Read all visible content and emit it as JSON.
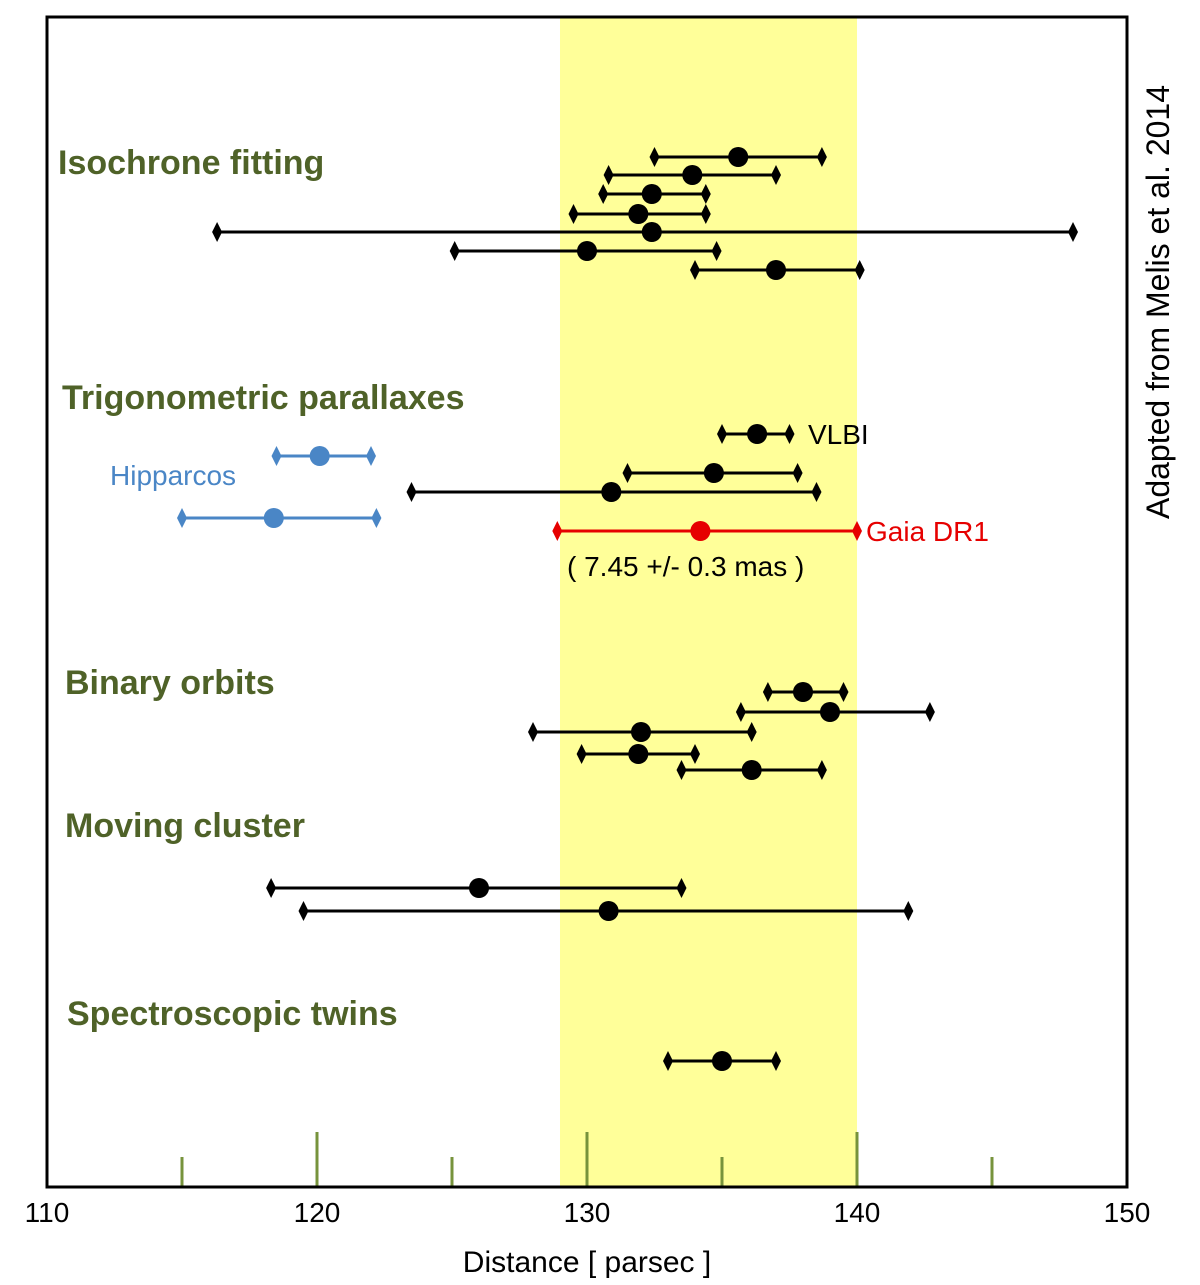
{
  "chart_data": {
    "type": "scatter",
    "subtype": "error-bar",
    "title": "",
    "xlabel": "Distance [ parsec ]",
    "ylabel": "",
    "xlim": [
      110,
      150
    ],
    "xticks": [
      110,
      120,
      130,
      140,
      150
    ],
    "minor_xticks": [
      115,
      120,
      125,
      130,
      135,
      140,
      145
    ],
    "side_note": "Adapted from Melis et al. 2014",
    "highlight_band": {
      "from": 129,
      "to": 140,
      "color": "#ffff99"
    },
    "colors": {
      "default": "#000000",
      "hipparcos": "#4a86c6",
      "gaia": "#e60000",
      "group_label": "#4f6228",
      "tick": "#77933c"
    },
    "groups": [
      {
        "label": "Isochrone fitting",
        "measurements": [
          {
            "value": 135.6,
            "low": 132.5,
            "high": 138.7
          },
          {
            "value": 133.9,
            "low": 130.8,
            "high": 137.0
          },
          {
            "value": 132.4,
            "low": 130.6,
            "high": 134.4
          },
          {
            "value": 131.9,
            "low": 129.5,
            "high": 134.4
          },
          {
            "value": 132.4,
            "low": 116.3,
            "high": 148.0
          },
          {
            "value": 130.0,
            "low": 125.1,
            "high": 134.8
          },
          {
            "value": 137.0,
            "low": 134.0,
            "high": 140.1
          }
        ]
      },
      {
        "label": "Trigonometric parallaxes",
        "measurements": [
          {
            "value": 136.3,
            "low": 135.0,
            "high": 137.5,
            "annotation": "VLBI"
          },
          {
            "value": 120.1,
            "low": 118.5,
            "high": 122.0,
            "source": "hipparcos",
            "annotation": "Hipparcos"
          },
          {
            "value": 134.7,
            "low": 131.5,
            "high": 137.8
          },
          {
            "value": 130.9,
            "low": 123.5,
            "high": 138.5
          },
          {
            "value": 118.4,
            "low": 115.0,
            "high": 122.2,
            "source": "hipparcos"
          },
          {
            "value": 134.2,
            "low": 128.9,
            "high": 140.0,
            "source": "gaia",
            "annotation": "Gaia DR1",
            "note": "( 7.45 +/- 0.3 mas )"
          }
        ]
      },
      {
        "label": "Binary orbits",
        "measurements": [
          {
            "value": 138.0,
            "low": 136.7,
            "high": 139.5
          },
          {
            "value": 139.0,
            "low": 135.7,
            "high": 142.7
          },
          {
            "value": 132.0,
            "low": 128.0,
            "high": 136.1
          },
          {
            "value": 131.9,
            "low": 129.8,
            "high": 134.0
          },
          {
            "value": 136.1,
            "low": 133.5,
            "high": 138.7
          }
        ]
      },
      {
        "label": "Moving cluster",
        "measurements": [
          {
            "value": 126.0,
            "low": 118.3,
            "high": 133.5
          },
          {
            "value": 130.8,
            "low": 119.5,
            "high": 141.9
          }
        ]
      },
      {
        "label": "Spectroscopic twins",
        "measurements": [
          {
            "value": 135.0,
            "low": 133.0,
            "high": 137.0
          }
        ]
      }
    ]
  }
}
